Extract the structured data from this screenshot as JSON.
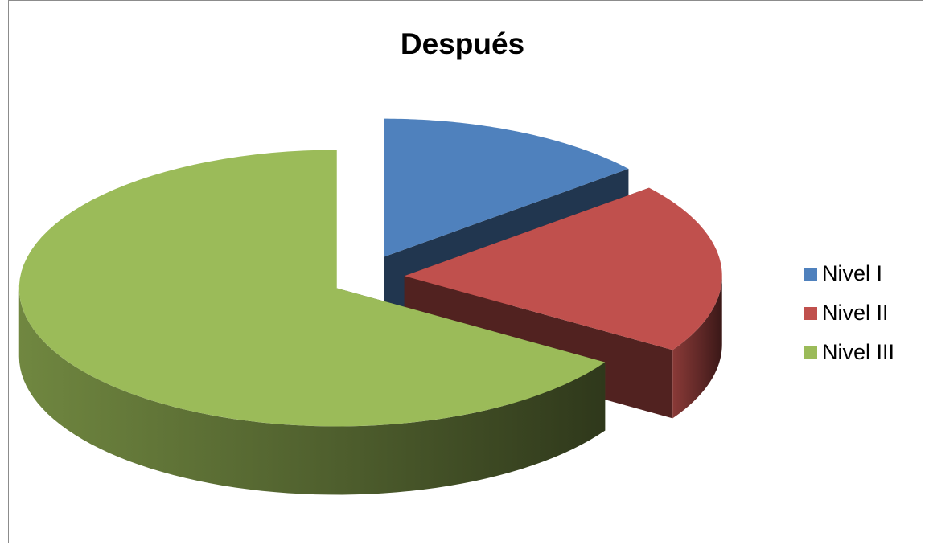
{
  "chart_data": {
    "type": "pie",
    "title": "Después",
    "categories": [
      "Nivel I",
      "Nivel II",
      "Nivel III"
    ],
    "values": [
      14,
      20,
      66
    ],
    "colors": [
      "#4f81bd",
      "#c0504d",
      "#9bbb59"
    ],
    "style": "3d-exploded",
    "legend_position": "right"
  }
}
